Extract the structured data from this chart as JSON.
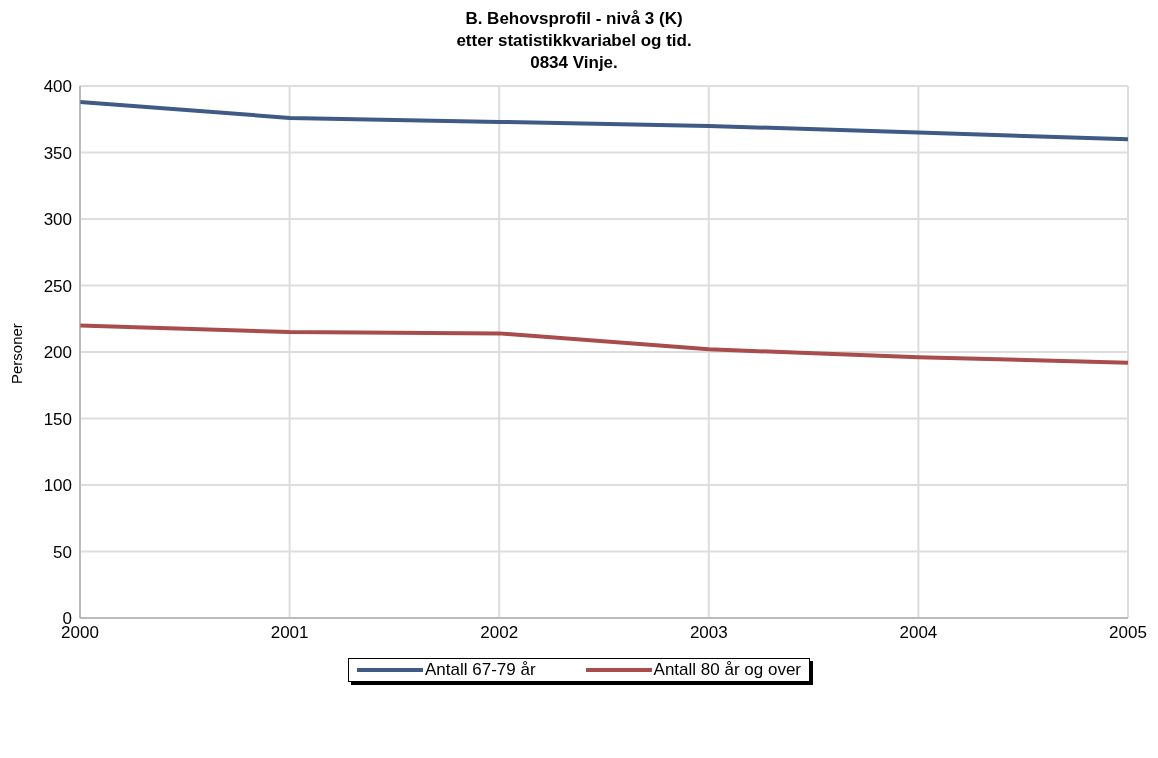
{
  "chart_data": {
    "type": "line",
    "title": "B. Behovsprofil - nivå 3 (K)\netter statistikkvariabel og tid.\n0834 Vinje.",
    "ylabel": "Personer",
    "x": [
      2000,
      2001,
      2002,
      2003,
      2004,
      2005
    ],
    "series": [
      {
        "name": "Antall 67-79 år",
        "color": "#3f5a85",
        "values": [
          388,
          376,
          373,
          370,
          365,
          360
        ]
      },
      {
        "name": "Antall 80 år og over",
        "color": "#a84c4c",
        "values": [
          220,
          215,
          214,
          202,
          196,
          192
        ]
      }
    ],
    "xlim": [
      2000,
      2005
    ],
    "xticks": [
      2000,
      2001,
      2002,
      2003,
      2004,
      2005
    ],
    "ylim": [
      0,
      400
    ],
    "yticks": [
      0,
      50,
      100,
      150,
      200,
      250,
      300,
      350,
      400
    ],
    "grid": true,
    "legend": "bottom"
  }
}
